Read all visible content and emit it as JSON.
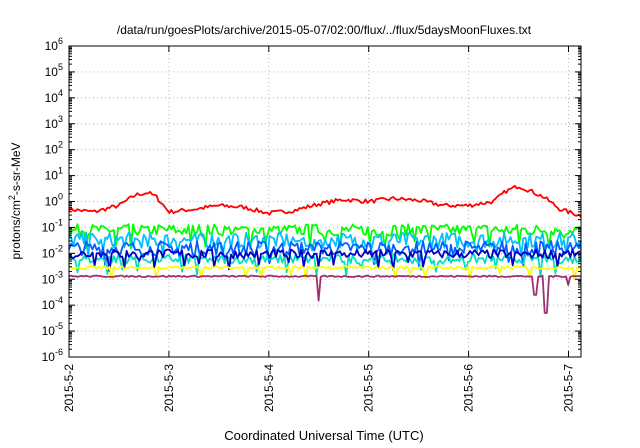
{
  "chart_data": {
    "type": "line",
    "title": "/data/run/goesPlots/archive/2015-05-07/02:00/flux/../flux/5daysMoonFluxes.txt",
    "xlabel": "Coordinated Universal Time (UTC)",
    "ylabel": {
      "prefix": "protons/cm",
      "sup": "2",
      "suffix": "-s-sr-MeV"
    },
    "yscale": "log",
    "ylim": [
      -6,
      6
    ],
    "ytick_exponents": [
      -6,
      -5,
      -4,
      -3,
      -2,
      -1,
      0,
      1,
      2,
      3,
      4,
      5,
      6
    ],
    "ytick_base": "10",
    "xlim": [
      "2015-05-02",
      "2015-05-07T03:00"
    ],
    "x_ticks": [
      {
        "at": "2015-05-02",
        "label": "2015-5-2"
      },
      {
        "at": "2015-05-03",
        "label": "2015-5-3"
      },
      {
        "at": "2015-05-04",
        "label": "2015-5-4"
      },
      {
        "at": "2015-05-05",
        "label": "2015-5-5"
      },
      {
        "at": "2015-05-06",
        "label": "2015-5-6"
      },
      {
        "at": "2015-05-07",
        "label": "2015-5-7"
      }
    ],
    "grid": true,
    "legend": "none",
    "series": [
      {
        "color": "#ff0000",
        "style": "smooth",
        "noise": 0.08,
        "points": [
          [
            "2015-05-02T00:00",
            0.5
          ],
          [
            "2015-05-02T06:00",
            0.4
          ],
          [
            "2015-05-02T12:00",
            0.7
          ],
          [
            "2015-05-02T16:00",
            1.8
          ],
          [
            "2015-05-02T19:00",
            2.2
          ],
          [
            "2015-05-02T21:00",
            1.5
          ],
          [
            "2015-05-03T00:00",
            0.4
          ],
          [
            "2015-05-03T06:00",
            0.5
          ],
          [
            "2015-05-03T12:00",
            0.7
          ],
          [
            "2015-05-03T18:00",
            0.6
          ],
          [
            "2015-05-04T00:00",
            0.35
          ],
          [
            "2015-05-04T06:00",
            0.45
          ],
          [
            "2015-05-04T12:00",
            0.8
          ],
          [
            "2015-05-04T18:00",
            1.2
          ],
          [
            "2015-05-05T00:00",
            1.0
          ],
          [
            "2015-05-05T06:00",
            1.3
          ],
          [
            "2015-05-05T12:00",
            1.1
          ],
          [
            "2015-05-05T18:00",
            0.7
          ],
          [
            "2015-05-06T00:00",
            0.7
          ],
          [
            "2015-05-06T06:00",
            1.0
          ],
          [
            "2015-05-06T09:00",
            2.5
          ],
          [
            "2015-05-06T12:00",
            4.0
          ],
          [
            "2015-05-06T15:00",
            2.5
          ],
          [
            "2015-05-06T18:00",
            1.5
          ],
          [
            "2015-05-06T22:00",
            0.5
          ],
          [
            "2015-05-07T03:00",
            0.28
          ]
        ]
      },
      {
        "color": "#00ff00",
        "style": "jagged",
        "base": 0.08,
        "amp": 0.45,
        "dip": 0.35,
        "dipCount": 4,
        "dropTimes": []
      },
      {
        "color": "#00c0ff",
        "style": "jagged",
        "base": 0.032,
        "amp": 0.6,
        "dip": 0.3,
        "dipCount": 4,
        "dropTimes": []
      },
      {
        "color": "#0060ff",
        "style": "jagged",
        "base": 0.016,
        "amp": 0.55,
        "dip": 0.3,
        "dipCount": 4,
        "dropTimes": []
      },
      {
        "color": "#00e0c0",
        "style": "jagged",
        "base": 0.006,
        "amp": 0.35,
        "dip": 0.3,
        "dipCount": 4,
        "dropTimes": []
      },
      {
        "color": "#0000c0",
        "style": "jagged",
        "base": 0.0095,
        "amp": 0.35,
        "dip": 0.3,
        "dipCount": 4,
        "dropTimes": []
      },
      {
        "color": "#ffff00",
        "style": "jagged",
        "base": 0.0028,
        "amp": 0.12,
        "dip": 0.25,
        "dipCount": 3,
        "dropTimes": []
      },
      {
        "color": "#a03070",
        "style": "jagged",
        "base": 0.0013,
        "amp": 0.06,
        "dip": 0.0,
        "dipCount": 0,
        "dropTimes": [
          [
            "2015-05-04T12:00",
            0.00015
          ],
          [
            "2015-05-06T16:00",
            0.00025
          ],
          [
            "2015-05-06T18:30",
            5e-05
          ],
          [
            "2015-05-07T00:00",
            0.0006
          ]
        ]
      }
    ]
  }
}
